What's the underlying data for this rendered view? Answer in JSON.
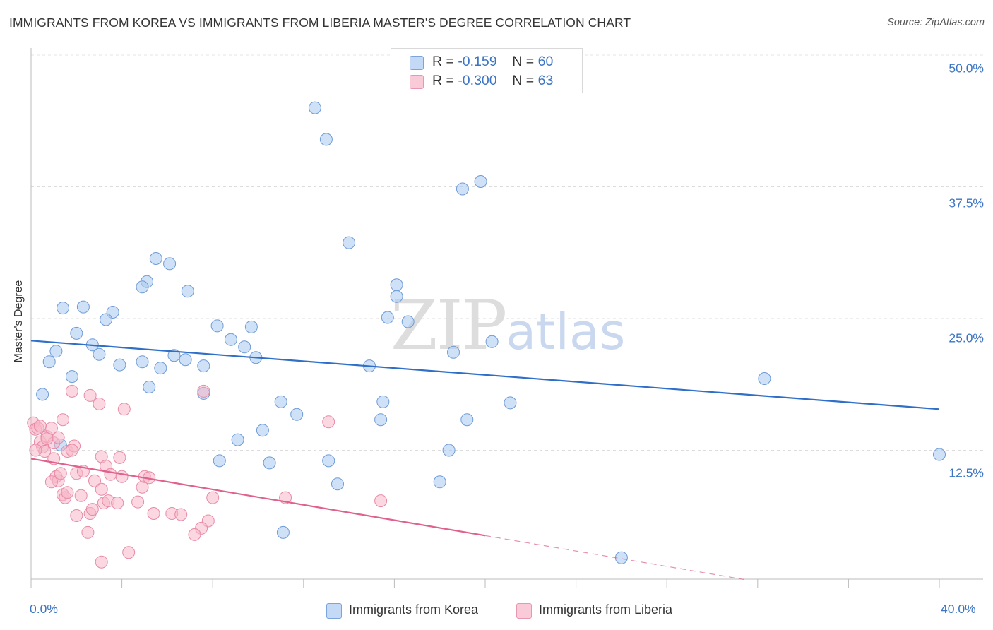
{
  "header": {
    "title": "IMMIGRANTS FROM KOREA VS IMMIGRANTS FROM LIBERIA MASTER'S DEGREE CORRELATION CHART",
    "source": "Source: ZipAtlas.com"
  },
  "watermark": {
    "zip": "ZIP",
    "atlas": "atlas"
  },
  "legend": {
    "rows": [
      {
        "r_label": "R = ",
        "r_value": "-0.159",
        "n_label": "N = ",
        "n_value": "60",
        "color": "#a8c8f0"
      },
      {
        "r_label": "R = ",
        "r_value": "-0.300",
        "n_label": "N = ",
        "n_value": "63",
        "color": "#f6b6c8"
      }
    ]
  },
  "chart_data": {
    "type": "scatter",
    "title": "IMMIGRANTS FROM KOREA VS IMMIGRANTS FROM LIBERIA MASTER'S DEGREE CORRELATION CHART",
    "xlabel": "",
    "ylabel": "Master's Degree",
    "xlim": [
      0,
      40
    ],
    "ylim": [
      0,
      50
    ],
    "x_tick_labels": [
      "0.0%",
      "40.0%"
    ],
    "y_ticks": [
      12.5,
      25.0,
      37.5,
      50.0
    ],
    "y_tick_labels": [
      "12.5%",
      "25.0%",
      "37.5%",
      "50.0%"
    ],
    "grid": true,
    "legend_position": "bottom",
    "series": [
      {
        "name": "Immigrants from Korea",
        "color": "#a8c8f0",
        "stroke": "#6f9bd6",
        "line_color": "#2f6fc8",
        "trend": {
          "x": [
            0,
            40
          ],
          "y": [
            22.9,
            16.4
          ]
        },
        "points": [
          [
            12.5,
            45.0
          ],
          [
            13.0,
            42.0
          ],
          [
            19.0,
            37.3
          ],
          [
            19.8,
            38.0
          ],
          [
            14.0,
            32.2
          ],
          [
            5.5,
            30.7
          ],
          [
            6.1,
            30.2
          ],
          [
            5.1,
            28.5
          ],
          [
            4.9,
            28.0
          ],
          [
            16.1,
            28.2
          ],
          [
            16.1,
            27.1
          ],
          [
            6.9,
            27.6
          ],
          [
            1.4,
            26.0
          ],
          [
            2.3,
            26.1
          ],
          [
            3.6,
            25.6
          ],
          [
            3.3,
            24.9
          ],
          [
            15.7,
            25.1
          ],
          [
            16.6,
            24.7
          ],
          [
            8.2,
            24.3
          ],
          [
            9.7,
            24.2
          ],
          [
            2.0,
            23.6
          ],
          [
            8.8,
            23.0
          ],
          [
            20.3,
            22.8
          ],
          [
            2.7,
            22.5
          ],
          [
            9.4,
            22.3
          ],
          [
            1.1,
            21.9
          ],
          [
            3.0,
            21.6
          ],
          [
            18.6,
            21.8
          ],
          [
            6.3,
            21.5
          ],
          [
            0.8,
            20.9
          ],
          [
            6.8,
            21.1
          ],
          [
            4.9,
            20.9
          ],
          [
            3.9,
            20.6
          ],
          [
            5.7,
            20.3
          ],
          [
            7.6,
            20.5
          ],
          [
            9.9,
            21.3
          ],
          [
            14.9,
            20.5
          ],
          [
            1.8,
            19.5
          ],
          [
            5.2,
            18.5
          ],
          [
            32.3,
            19.3
          ],
          [
            0.5,
            17.8
          ],
          [
            7.6,
            17.9
          ],
          [
            11.0,
            17.1
          ],
          [
            15.5,
            17.1
          ],
          [
            21.1,
            17.0
          ],
          [
            11.7,
            15.9
          ],
          [
            15.4,
            15.4
          ],
          [
            19.2,
            15.4
          ],
          [
            10.2,
            14.4
          ],
          [
            9.1,
            13.5
          ],
          [
            18.4,
            12.5
          ],
          [
            1.3,
            13.0
          ],
          [
            8.3,
            11.5
          ],
          [
            10.5,
            11.3
          ],
          [
            13.1,
            11.5
          ],
          [
            40.0,
            12.1
          ],
          [
            18.0,
            9.5
          ],
          [
            13.5,
            9.3
          ],
          [
            11.1,
            4.7
          ],
          [
            26.0,
            2.3
          ]
        ]
      },
      {
        "name": "Immigrants from Liberia",
        "color": "#f6b6c8",
        "stroke": "#e88aa6",
        "line_color": "#e0608e",
        "trend": {
          "x": [
            0,
            20
          ],
          "y": [
            11.7,
            4.4
          ]
        },
        "trend_dashed": {
          "x": [
            20,
            31.5
          ],
          "y": [
            4.4,
            0.2
          ]
        },
        "points": [
          [
            0.1,
            15.1
          ],
          [
            0.2,
            14.5
          ],
          [
            0.3,
            14.6
          ],
          [
            0.4,
            13.3
          ],
          [
            0.5,
            12.8
          ],
          [
            0.6,
            12.4
          ],
          [
            0.7,
            13.8
          ],
          [
            0.9,
            14.6
          ],
          [
            1.0,
            13.2
          ],
          [
            1.0,
            11.7
          ],
          [
            1.2,
            13.7
          ],
          [
            1.4,
            15.4
          ],
          [
            1.6,
            12.4
          ],
          [
            1.9,
            12.9
          ],
          [
            1.8,
            12.5
          ],
          [
            1.8,
            18.1
          ],
          [
            2.6,
            17.7
          ],
          [
            3.0,
            16.9
          ],
          [
            4.1,
            16.4
          ],
          [
            7.6,
            18.1
          ],
          [
            13.1,
            15.2
          ],
          [
            1.1,
            10.0
          ],
          [
            1.2,
            9.6
          ],
          [
            1.3,
            10.3
          ],
          [
            0.9,
            9.5
          ],
          [
            2.0,
            10.3
          ],
          [
            2.3,
            10.5
          ],
          [
            2.8,
            9.6
          ],
          [
            3.1,
            11.9
          ],
          [
            3.3,
            11.0
          ],
          [
            3.5,
            10.2
          ],
          [
            3.9,
            11.8
          ],
          [
            4.0,
            10.0
          ],
          [
            4.9,
            9.0
          ],
          [
            5.0,
            10.0
          ],
          [
            5.2,
            9.9
          ],
          [
            1.4,
            8.3
          ],
          [
            1.5,
            8.0
          ],
          [
            1.6,
            8.5
          ],
          [
            2.2,
            8.2
          ],
          [
            3.1,
            8.8
          ],
          [
            3.2,
            7.5
          ],
          [
            3.4,
            7.7
          ],
          [
            3.8,
            7.5
          ],
          [
            4.7,
            7.6
          ],
          [
            8.0,
            8.0
          ],
          [
            11.2,
            8.0
          ],
          [
            15.4,
            7.7
          ],
          [
            2.0,
            6.3
          ],
          [
            2.6,
            6.5
          ],
          [
            2.7,
            6.9
          ],
          [
            5.4,
            6.5
          ],
          [
            6.2,
            6.5
          ],
          [
            6.6,
            6.4
          ],
          [
            7.8,
            5.8
          ],
          [
            7.5,
            5.1
          ],
          [
            7.2,
            4.5
          ],
          [
            2.5,
            4.7
          ],
          [
            4.3,
            2.8
          ],
          [
            3.1,
            1.9
          ],
          [
            0.2,
            12.5
          ],
          [
            0.4,
            14.8
          ],
          [
            0.7,
            13.6
          ]
        ]
      }
    ]
  },
  "bottom_legend": {
    "items": [
      {
        "label": "Immigrants from Korea",
        "color": "#a8c8f0"
      },
      {
        "label": "Immigrants from Liberia",
        "color": "#f6b6c8"
      }
    ]
  }
}
